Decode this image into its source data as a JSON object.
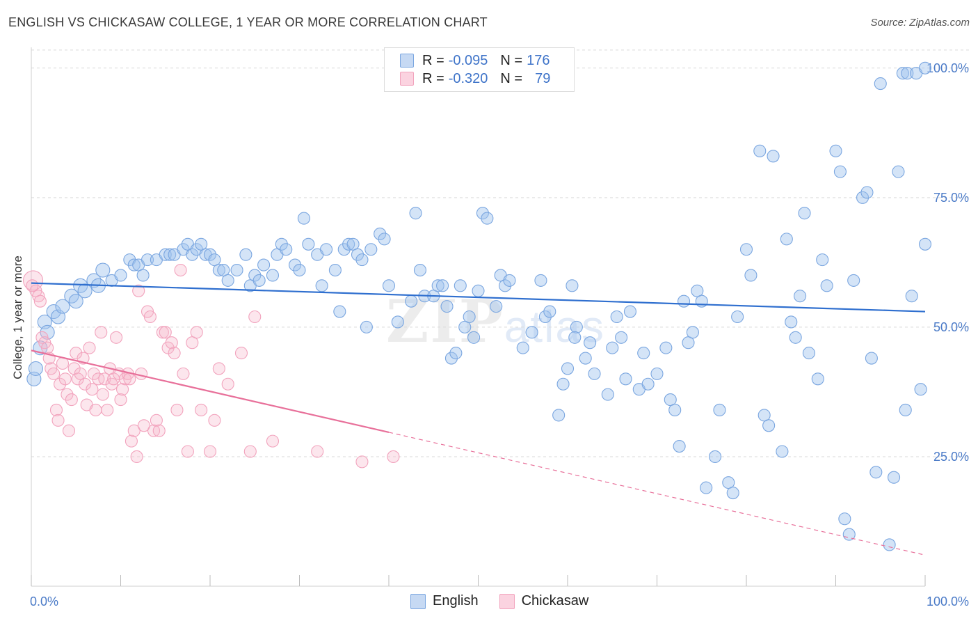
{
  "title": "ENGLISH VS CHICKASAW COLLEGE, 1 YEAR OR MORE CORRELATION CHART",
  "source": "Source: ZipAtlas.com",
  "watermark": {
    "zip": "ZIP",
    "atlas": "atlas"
  },
  "legend": {
    "rows": [
      {
        "r_label": "R = ",
        "r_value": "-0.095",
        "n_label": "N = ",
        "n_value": "176"
      },
      {
        "r_label": "R = ",
        "r_value": "-0.320",
        "n_label": "N = ",
        "n_value": "79"
      }
    ],
    "bottom": [
      "English",
      "Chickasaw"
    ]
  },
  "colors": {
    "english": "#7aa6e0",
    "english_line": "#2f6fcf",
    "chickasaw": "#f2a3bd",
    "chickasaw_line": "#e8709a",
    "tick_label": "#4a7ac7",
    "grid": "#d9d9d9"
  },
  "chart_data": {
    "type": "scatter",
    "title": "ENGLISH VS CHICKASAW COLLEGE, 1 YEAR OR MORE CORRELATION CHART",
    "xlabel": "",
    "ylabel": "College, 1 year or more",
    "xlim": [
      0,
      100
    ],
    "ylim": [
      0,
      104
    ],
    "x_tick_labels": [
      "0.0%",
      "100.0%"
    ],
    "y_ticks": [
      25,
      50,
      75,
      100
    ],
    "y_tick_labels": [
      "25.0%",
      "50.0%",
      "75.0%",
      "100.0%"
    ],
    "grid": "horizontal dashed",
    "legend_position": "top-center",
    "series": [
      {
        "name": "English",
        "r": -0.095,
        "n": 176,
        "trend": {
          "x": [
            0,
            100
          ],
          "y": [
            58.5,
            53.0
          ],
          "dashed_from": null
        },
        "points": [
          [
            0.3,
            40
          ],
          [
            0.5,
            42
          ],
          [
            1.0,
            46
          ],
          [
            1.5,
            51
          ],
          [
            1.8,
            49
          ],
          [
            2.5,
            53
          ],
          [
            3.0,
            52
          ],
          [
            3.5,
            54
          ],
          [
            4.5,
            56
          ],
          [
            5.0,
            55
          ],
          [
            5.5,
            58
          ],
          [
            6.0,
            57
          ],
          [
            7.0,
            59
          ],
          [
            7.5,
            58
          ],
          [
            8.0,
            61
          ],
          [
            9.0,
            59
          ],
          [
            10.0,
            60
          ],
          [
            11.0,
            63
          ],
          [
            11.5,
            62
          ],
          [
            12.0,
            62
          ],
          [
            12.5,
            60
          ],
          [
            13.0,
            63
          ],
          [
            14.0,
            63
          ],
          [
            15.0,
            64
          ],
          [
            15.5,
            64
          ],
          [
            16.0,
            64
          ],
          [
            17.0,
            65
          ],
          [
            17.5,
            66
          ],
          [
            18.0,
            64
          ],
          [
            18.5,
            65
          ],
          [
            19.0,
            66
          ],
          [
            19.5,
            64
          ],
          [
            20.0,
            64
          ],
          [
            20.5,
            63
          ],
          [
            21.0,
            61
          ],
          [
            21.5,
            61
          ],
          [
            22.0,
            59
          ],
          [
            23.0,
            61
          ],
          [
            24.0,
            64
          ],
          [
            24.5,
            58
          ],
          [
            25.0,
            60
          ],
          [
            25.5,
            59
          ],
          [
            26.0,
            62
          ],
          [
            27.0,
            60
          ],
          [
            27.5,
            64
          ],
          [
            28.0,
            66
          ],
          [
            28.5,
            65
          ],
          [
            29.5,
            62
          ],
          [
            30.0,
            61
          ],
          [
            30.5,
            71
          ],
          [
            31.0,
            66
          ],
          [
            32.0,
            64
          ],
          [
            32.5,
            58
          ],
          [
            33.0,
            65
          ],
          [
            34.0,
            61
          ],
          [
            34.5,
            53
          ],
          [
            35.0,
            65
          ],
          [
            35.5,
            66
          ],
          [
            36.0,
            66
          ],
          [
            36.5,
            64
          ],
          [
            37.0,
            63
          ],
          [
            37.5,
            50
          ],
          [
            38.0,
            65
          ],
          [
            39.0,
            68
          ],
          [
            39.5,
            67
          ],
          [
            40.0,
            58
          ],
          [
            41.0,
            51
          ],
          [
            42.5,
            55
          ],
          [
            43.0,
            72
          ],
          [
            43.5,
            61
          ],
          [
            44.0,
            56
          ],
          [
            45.0,
            56
          ],
          [
            45.5,
            58
          ],
          [
            46.0,
            58
          ],
          [
            46.5,
            54
          ],
          [
            47.0,
            44
          ],
          [
            47.5,
            45
          ],
          [
            48.0,
            58
          ],
          [
            48.5,
            50
          ],
          [
            49.0,
            52
          ],
          [
            49.5,
            48
          ],
          [
            50.0,
            57
          ],
          [
            50.5,
            72
          ],
          [
            51.0,
            71
          ],
          [
            52.0,
            54
          ],
          [
            52.5,
            60
          ],
          [
            53.0,
            58
          ],
          [
            53.5,
            59
          ],
          [
            55.0,
            46
          ],
          [
            56.0,
            49
          ],
          [
            57.0,
            59
          ],
          [
            57.5,
            52
          ],
          [
            58.0,
            53
          ],
          [
            59.0,
            33
          ],
          [
            59.5,
            39
          ],
          [
            60.0,
            42
          ],
          [
            60.5,
            58
          ],
          [
            61.0,
            50
          ],
          [
            62.0,
            44
          ],
          [
            62.5,
            47
          ],
          [
            63.0,
            41
          ],
          [
            64.5,
            37
          ],
          [
            65.0,
            46
          ],
          [
            65.5,
            52
          ],
          [
            66.0,
            48
          ],
          [
            66.5,
            40
          ],
          [
            67.0,
            53
          ],
          [
            68.0,
            38
          ],
          [
            68.5,
            45
          ],
          [
            69.0,
            39
          ],
          [
            70.0,
            41
          ],
          [
            71.0,
            46
          ],
          [
            71.5,
            36
          ],
          [
            72.0,
            34
          ],
          [
            72.5,
            27
          ],
          [
            73.0,
            55
          ],
          [
            73.5,
            47
          ],
          [
            74.0,
            49
          ],
          [
            74.5,
            57
          ],
          [
            75.0,
            55
          ],
          [
            75.5,
            19
          ],
          [
            76.5,
            25
          ],
          [
            77.0,
            34
          ],
          [
            78.0,
            20
          ],
          [
            78.5,
            18
          ],
          [
            79.0,
            52
          ],
          [
            80.0,
            65
          ],
          [
            80.5,
            60
          ],
          [
            81.5,
            84
          ],
          [
            82.0,
            33
          ],
          [
            82.5,
            31
          ],
          [
            83.0,
            83
          ],
          [
            84.0,
            26
          ],
          [
            84.5,
            67
          ],
          [
            85.0,
            51
          ],
          [
            85.5,
            48
          ],
          [
            86.0,
            56
          ],
          [
            86.5,
            72
          ],
          [
            87.0,
            45
          ],
          [
            88.0,
            40
          ],
          [
            88.5,
            63
          ],
          [
            89.0,
            58
          ],
          [
            90.0,
            84
          ],
          [
            90.5,
            80
          ],
          [
            91.0,
            13
          ],
          [
            92.0,
            59
          ],
          [
            93.0,
            75
          ],
          [
            93.5,
            76
          ],
          [
            94.0,
            44
          ],
          [
            95.0,
            97
          ],
          [
            96.0,
            8
          ],
          [
            96.5,
            21
          ],
          [
            97.0,
            80
          ],
          [
            97.5,
            99
          ],
          [
            98.0,
            99
          ],
          [
            98.5,
            56
          ],
          [
            99.0,
            99
          ],
          [
            99.5,
            38
          ],
          [
            100.0,
            100
          ],
          [
            100.0,
            66
          ],
          [
            91.5,
            10
          ],
          [
            94.5,
            22
          ],
          [
            97.8,
            34
          ],
          [
            60.8,
            48
          ]
        ]
      },
      {
        "name": "Chickasaw",
        "r": -0.32,
        "n": 79,
        "trend": {
          "x": [
            0,
            100
          ],
          "y": [
            45.5,
            6.0
          ],
          "dashed_from": 40
        },
        "points": [
          [
            0.2,
            59
          ],
          [
            0.5,
            57
          ],
          [
            0.8,
            56
          ],
          [
            1.0,
            55
          ],
          [
            1.2,
            48
          ],
          [
            1.5,
            47
          ],
          [
            1.8,
            46
          ],
          [
            2.0,
            44
          ],
          [
            2.2,
            42
          ],
          [
            2.5,
            41
          ],
          [
            2.8,
            34
          ],
          [
            3.0,
            32
          ],
          [
            3.2,
            39
          ],
          [
            3.5,
            43
          ],
          [
            3.8,
            40
          ],
          [
            4.0,
            37
          ],
          [
            4.2,
            30
          ],
          [
            4.5,
            36
          ],
          [
            4.8,
            42
          ],
          [
            5.0,
            45
          ],
          [
            5.2,
            40
          ],
          [
            5.5,
            41
          ],
          [
            5.8,
            44
          ],
          [
            6.0,
            39
          ],
          [
            6.2,
            35
          ],
          [
            6.5,
            46
          ],
          [
            6.8,
            38
          ],
          [
            7.0,
            41
          ],
          [
            7.2,
            34
          ],
          [
            7.5,
            40
          ],
          [
            7.8,
            49
          ],
          [
            8.0,
            37
          ],
          [
            8.2,
            40
          ],
          [
            8.5,
            34
          ],
          [
            8.8,
            42
          ],
          [
            9.0,
            39
          ],
          [
            9.2,
            40
          ],
          [
            9.5,
            48
          ],
          [
            9.8,
            41
          ],
          [
            10.0,
            36
          ],
          [
            10.2,
            38
          ],
          [
            10.5,
            40
          ],
          [
            10.8,
            41
          ],
          [
            11.0,
            40
          ],
          [
            11.2,
            28
          ],
          [
            11.5,
            30
          ],
          [
            11.8,
            25
          ],
          [
            12.0,
            57
          ],
          [
            12.3,
            41
          ],
          [
            12.6,
            31
          ],
          [
            13.0,
            53
          ],
          [
            13.3,
            52
          ],
          [
            13.7,
            30
          ],
          [
            14.0,
            32
          ],
          [
            14.3,
            30
          ],
          [
            14.7,
            49
          ],
          [
            15.0,
            49
          ],
          [
            15.3,
            46
          ],
          [
            15.7,
            47
          ],
          [
            16.0,
            45
          ],
          [
            16.3,
            34
          ],
          [
            16.7,
            61
          ],
          [
            17.0,
            41
          ],
          [
            17.5,
            26
          ],
          [
            18.0,
            47
          ],
          [
            18.5,
            49
          ],
          [
            19.0,
            34
          ],
          [
            20.0,
            26
          ],
          [
            20.5,
            32
          ],
          [
            21.0,
            42
          ],
          [
            22.0,
            39
          ],
          [
            23.5,
            45
          ],
          [
            24.5,
            26
          ],
          [
            25.0,
            52
          ],
          [
            27.0,
            28
          ],
          [
            32.0,
            26
          ],
          [
            37.0,
            24
          ],
          [
            40.5,
            25
          ],
          [
            0.1,
            58
          ]
        ]
      }
    ]
  }
}
